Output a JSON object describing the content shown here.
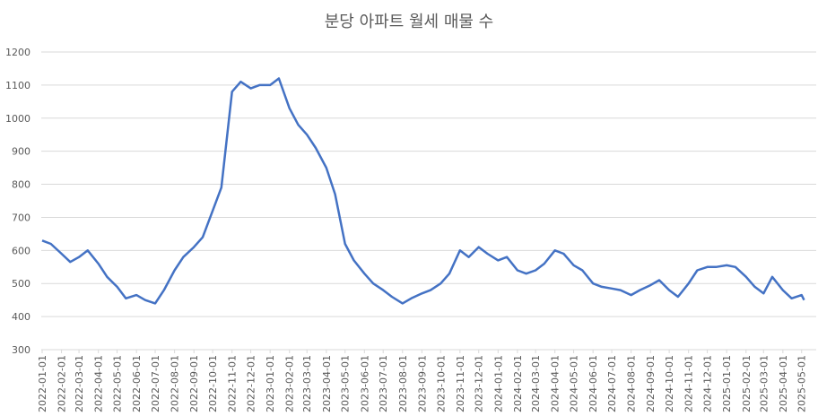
{
  "chart_data": {
    "type": "line",
    "title": "분당 아파트 월세 매물 수",
    "x": [
      "2022-01-01",
      "2022-01-15",
      "2022-02-01",
      "2022-02-15",
      "2022-03-01",
      "2022-03-15",
      "2022-04-01",
      "2022-04-15",
      "2022-05-01",
      "2022-05-15",
      "2022-06-01",
      "2022-06-15",
      "2022-07-01",
      "2022-07-15",
      "2022-08-01",
      "2022-08-15",
      "2022-09-01",
      "2022-09-15",
      "2022-10-01",
      "2022-10-15",
      "2022-11-01",
      "2022-11-15",
      "2022-12-01",
      "2022-12-15",
      "2023-01-01",
      "2023-01-15",
      "2023-02-01",
      "2023-02-15",
      "2023-03-01",
      "2023-03-15",
      "2023-04-01",
      "2023-04-15",
      "2023-05-01",
      "2023-05-15",
      "2023-06-01",
      "2023-06-15",
      "2023-07-01",
      "2023-07-15",
      "2023-08-01",
      "2023-08-15",
      "2023-09-01",
      "2023-09-15",
      "2023-10-01",
      "2023-10-15",
      "2023-11-01",
      "2023-11-15",
      "2023-12-01",
      "2023-12-15",
      "2024-01-01",
      "2024-01-15",
      "2024-02-01",
      "2024-02-15",
      "2024-03-01",
      "2024-03-15",
      "2024-04-01",
      "2024-04-15",
      "2024-05-01",
      "2024-05-15",
      "2024-06-01",
      "2024-06-15",
      "2024-07-01",
      "2024-07-15",
      "2024-08-01",
      "2024-08-15",
      "2024-09-01",
      "2024-09-15",
      "2024-10-01",
      "2024-10-15",
      "2024-11-01",
      "2024-11-15",
      "2024-12-01",
      "2024-12-15",
      "2025-01-01",
      "2025-01-15",
      "2025-02-01",
      "2025-02-15",
      "2025-03-01",
      "2025-03-15",
      "2025-04-01",
      "2025-04-15",
      "2025-05-01",
      "2025-05-05"
    ],
    "series": [
      {
        "name": "분당 아파트 월세 매물 수",
        "color": "#4472c4",
        "values": [
          630,
          620,
          590,
          565,
          580,
          600,
          560,
          520,
          490,
          455,
          465,
          450,
          440,
          480,
          540,
          580,
          610,
          640,
          720,
          790,
          1080,
          1110,
          1090,
          1100,
          1100,
          1120,
          1030,
          980,
          950,
          910,
          850,
          770,
          620,
          570,
          530,
          500,
          480,
          460,
          440,
          455,
          470,
          480,
          500,
          530,
          600,
          580,
          610,
          590,
          570,
          580,
          540,
          530,
          540,
          560,
          600,
          590,
          555,
          540,
          500,
          490,
          485,
          480,
          465,
          480,
          495,
          510,
          480,
          460,
          500,
          540,
          550,
          550,
          555,
          550,
          520,
          490,
          470,
          520,
          480,
          455,
          465,
          450
        ]
      }
    ],
    "ylim": [
      300,
      1200
    ],
    "yticks": [
      300,
      400,
      500,
      600,
      700,
      800,
      900,
      1000,
      1100,
      1200
    ],
    "xlim": [
      "2022-01-01",
      "2025-05-10"
    ],
    "xticks": [
      "2022-01-01",
      "2022-02-01",
      "2022-03-01",
      "2022-04-01",
      "2022-05-01",
      "2022-06-01",
      "2022-07-01",
      "2022-08-01",
      "2022-09-01",
      "2022-10-01",
      "2022-11-01",
      "2022-12-01",
      "2023-01-01",
      "2023-02-01",
      "2023-03-01",
      "2023-04-01",
      "2023-05-01",
      "2023-06-01",
      "2023-07-01",
      "2023-08-01",
      "2023-09-01",
      "2023-10-01",
      "2023-11-01",
      "2023-12-01",
      "2024-01-01",
      "2024-02-01",
      "2024-03-01",
      "2024-04-01",
      "2024-05-01",
      "2024-06-01",
      "2024-07-01",
      "2024-08-01",
      "2024-09-01",
      "2024-10-01",
      "2024-11-01",
      "2024-12-01",
      "2025-01-01",
      "2025-02-01",
      "2025-03-01",
      "2025-04-01",
      "2025-05-01"
    ],
    "grid": true
  }
}
